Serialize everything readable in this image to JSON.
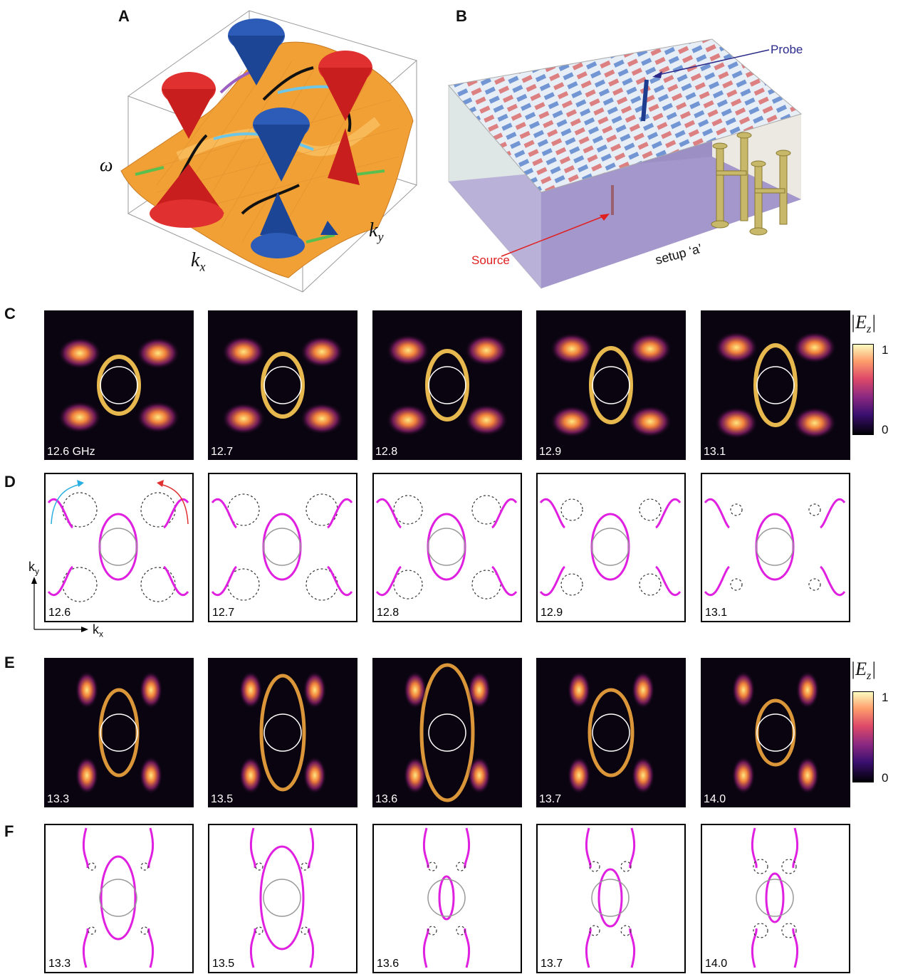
{
  "panels": {
    "A": "A",
    "B": "B",
    "C": "C",
    "D": "D",
    "E": "E",
    "F": "F"
  },
  "panelA": {
    "omega": "ω",
    "kx": "k",
    "kx_sub": "x",
    "ky": "k",
    "ky_sub": "y"
  },
  "panelB": {
    "probe": "Probe",
    "source": "Source",
    "setup": "setup ‘a’"
  },
  "colorbar": {
    "title": "|E",
    "title_sub": "z",
    "title_end": "|",
    "max": "1",
    "min": "0"
  },
  "axes": {
    "ky": "k",
    "ky_sub": "y",
    "kx": "k",
    "kx_sub": "x"
  },
  "rowC": [
    "12.6 GHz",
    "12.7",
    "12.8",
    "12.9",
    "13.1"
  ],
  "rowD": [
    "12.6",
    "12.7",
    "12.8",
    "12.9",
    "13.1"
  ],
  "rowE": [
    "13.3",
    "13.5",
    "13.6",
    "13.7",
    "14.0"
  ],
  "rowF": [
    "13.3",
    "13.5",
    "13.6",
    "13.7",
    "14.0"
  ],
  "colors": {
    "contour": "#e020e0",
    "cone_red": "#d41f1f",
    "cone_blue": "#1f4fa8",
    "surface": "#f0a030",
    "probe_arrow": "#2a2a8a",
    "source_arrow": "#e02020"
  }
}
